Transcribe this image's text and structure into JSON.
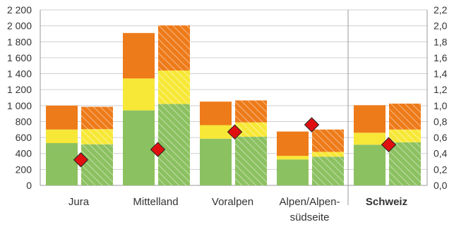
{
  "chart_data": {
    "type": "bar",
    "stacked": true,
    "categories": [
      "Jura",
      "Mittelland",
      "Voralpen",
      "Alpen/Alpen-\nsüdseite",
      "Schweiz"
    ],
    "emphasized_category": "Schweiz",
    "bars_per_category": 2,
    "bar_styles": [
      "solid",
      "hatched"
    ],
    "series": [
      {
        "values_bar1": [
          530,
          940,
          585,
          325,
          510
        ],
        "values_bar2": [
          515,
          1020,
          610,
          360,
          540
        ],
        "color": "#8cc161"
      },
      {
        "values_bar1": [
          170,
          400,
          170,
          45,
          150
        ],
        "values_bar2": [
          190,
          420,
          180,
          60,
          160
        ],
        "color": "#f7e837"
      },
      {
        "values_bar1": [
          300,
          570,
          295,
          305,
          345
        ],
        "values_bar2": [
          280,
          565,
          275,
          280,
          325
        ],
        "color": "#ee7b1a"
      }
    ],
    "markers": {
      "axis": "right",
      "shape": "diamond",
      "color": "#e01010",
      "values": [
        0.32,
        0.45,
        0.67,
        0.76,
        0.51
      ]
    },
    "y_left": {
      "min": 0,
      "max": 2200,
      "ticks": [
        "0",
        "200",
        "400",
        "600",
        "800",
        "1 000",
        "1 200",
        "1 400",
        "1 600",
        "1 800",
        "2 000",
        "2 200"
      ]
    },
    "y_right": {
      "min": 0,
      "max": 2.2,
      "ticks": [
        "0,0",
        "0,2",
        "0,4",
        "0,6",
        "0,8",
        "1,0",
        "1,2",
        "1,4",
        "1,6",
        "1,8",
        "2,0",
        "2,2"
      ]
    },
    "grid": true,
    "title": "",
    "xlabel": "",
    "ylabel": ""
  }
}
